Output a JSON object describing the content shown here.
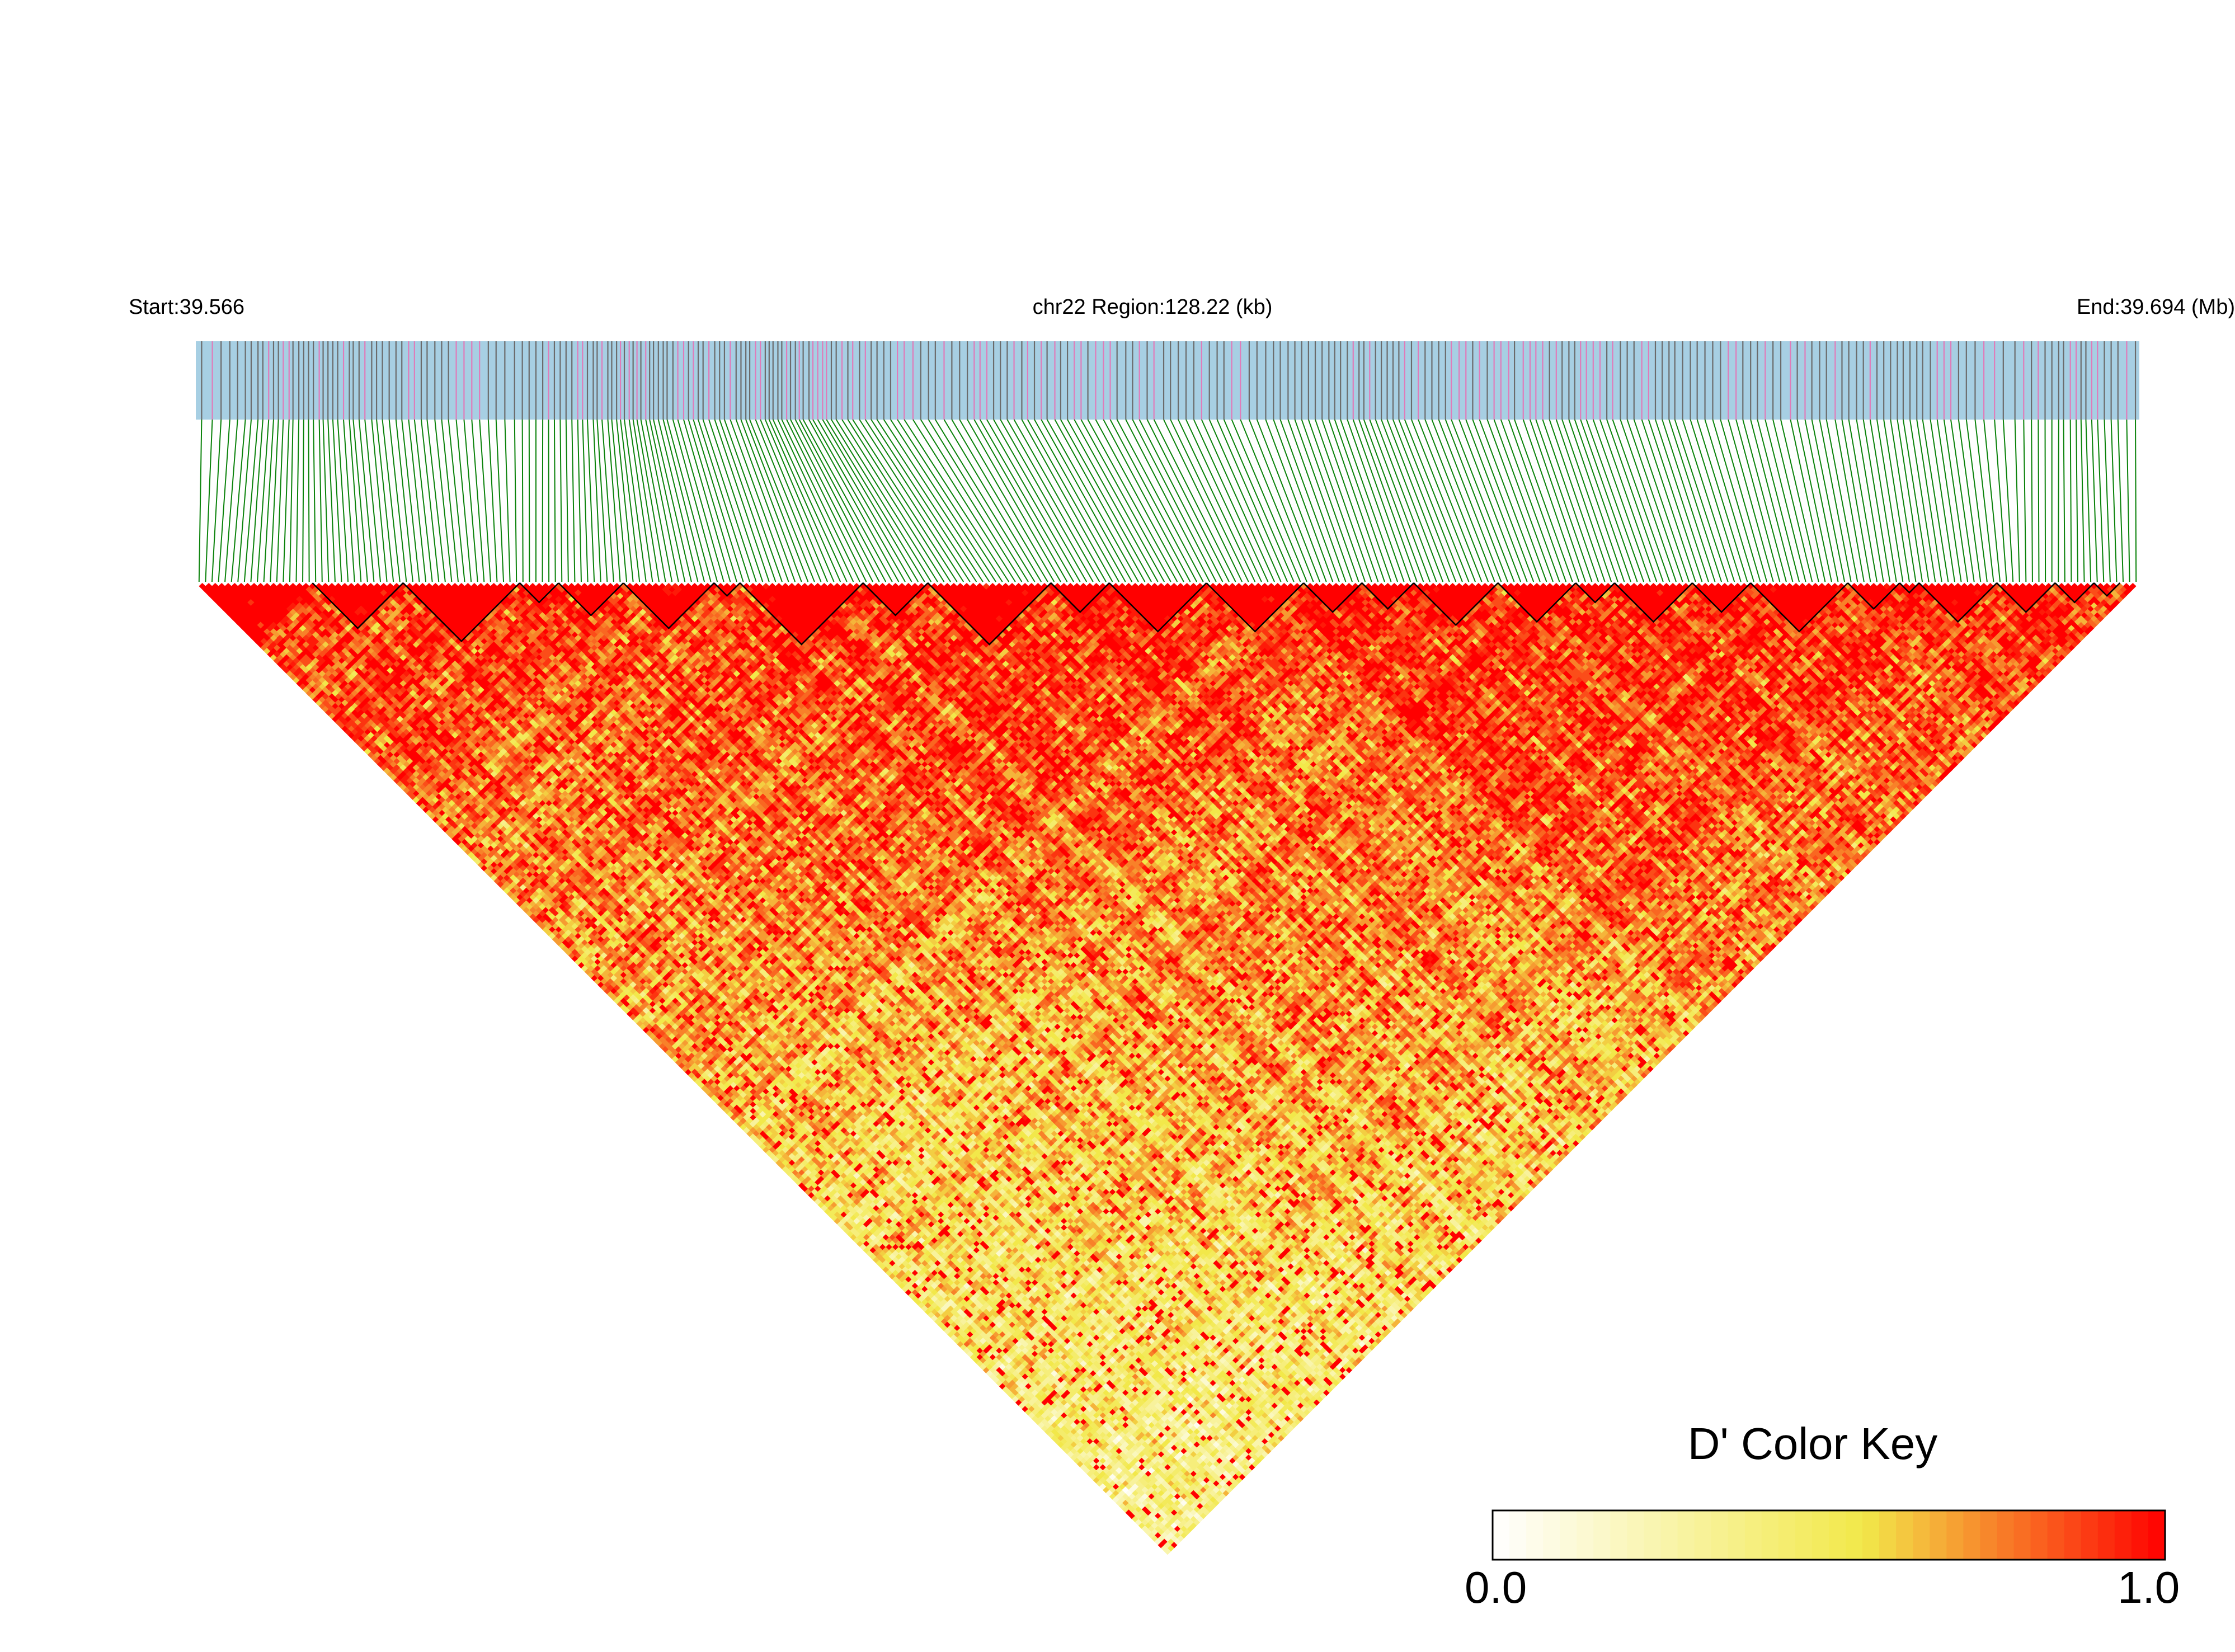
{
  "chart_data": {
    "type": "heatmap",
    "subtype": "ld-triangle",
    "chromosome": "chr22",
    "region_label": "chr22 Region:128.22 (kb)",
    "start_label": "Start:39.566",
    "end_label": "End:39.694 (Mb)",
    "region_start_mb": 39.566,
    "region_end_mb": 39.694,
    "region_size_kb": 128.22,
    "n_snps_approx": 300,
    "metric": "D'",
    "color_key": {
      "title": "D' Color Key",
      "min_label": "0.0",
      "max_label": "1.0",
      "min": 0.0,
      "max": 1.0,
      "colors": [
        "#ffffff",
        "#f2e84a",
        "#ff0000"
      ]
    },
    "track_colors": {
      "snp_bar": "#a7cfe3",
      "snp_tick_dark": "#6b6b6b",
      "snp_tick_pink": "#e07bb9",
      "connector_lines": "#0a820a",
      "block_outline": "#000000"
    },
    "snp_density_profile": [
      [
        0.0,
        0.6
      ],
      [
        0.05,
        1.6
      ],
      [
        0.1,
        1.2
      ],
      [
        0.16,
        0.8
      ],
      [
        0.22,
        1.8
      ],
      [
        0.26,
        1.4
      ],
      [
        0.31,
        1.7
      ],
      [
        0.37,
        0.9
      ],
      [
        0.43,
        1.1
      ],
      [
        0.5,
        1.0
      ],
      [
        0.55,
        0.9
      ],
      [
        0.6,
        1.3
      ],
      [
        0.66,
        1.0
      ],
      [
        0.71,
        1.2
      ],
      [
        0.77,
        1.0
      ],
      [
        0.82,
        0.9
      ],
      [
        0.88,
        1.2
      ],
      [
        0.93,
        0.7
      ],
      [
        0.97,
        1.4
      ],
      [
        1.0,
        0.8
      ]
    ],
    "block_boundaries_frac": [
      0.06,
      0.105,
      0.165,
      0.185,
      0.22,
      0.265,
      0.28,
      0.345,
      0.375,
      0.44,
      0.47,
      0.52,
      0.57,
      0.6,
      0.625,
      0.67,
      0.71,
      0.73,
      0.77,
      0.8,
      0.85,
      0.875,
      0.885,
      0.925,
      0.955,
      0.975,
      0.99
    ]
  }
}
